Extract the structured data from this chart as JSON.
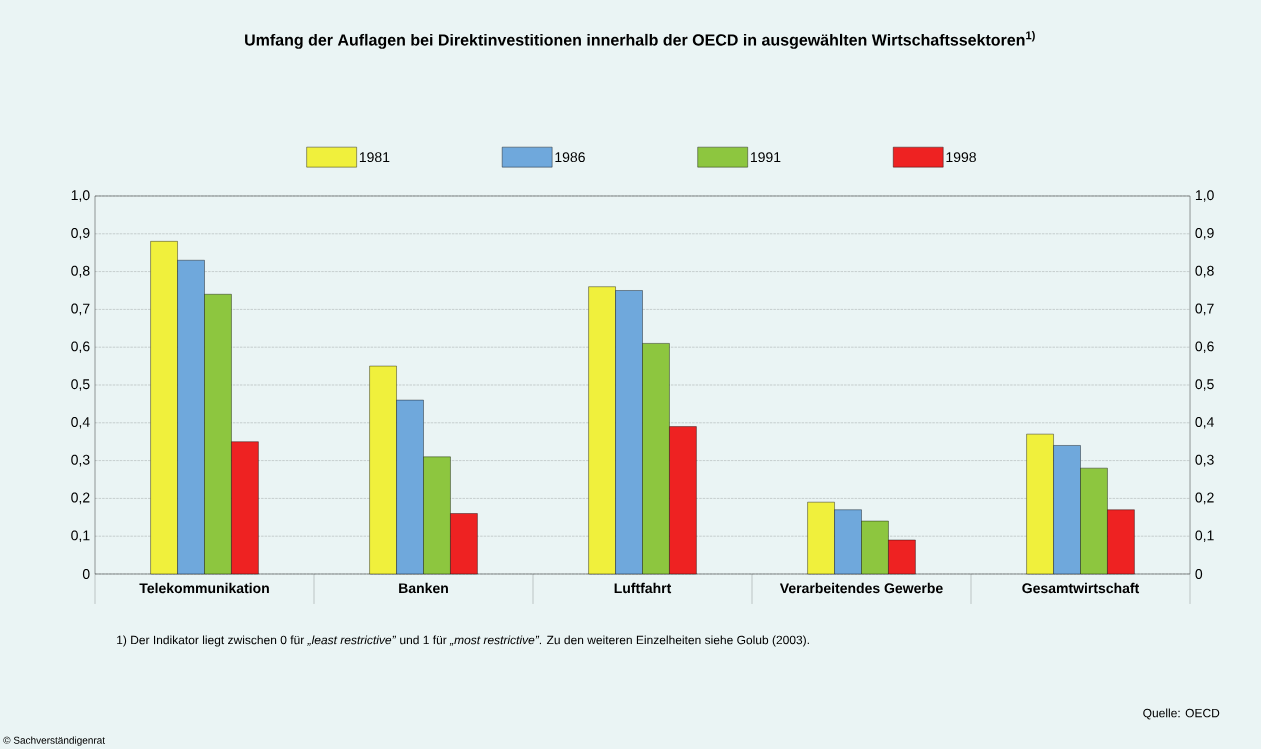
{
  "chart_data": {
    "type": "bar",
    "title": "Umfang der Auflagen bei Direktinvestitionen innerhalb der OECD in ausgewählten Wirtschaftssektoren$^{1)}$",
    "categories": [
      "Telekommunikation",
      "Banken",
      "Luftfahrt",
      "Verarbeitendes Gewerbe",
      "Gesamtwirtschaft"
    ],
    "series": [
      {
        "name": "1981",
        "color": "#f0f03c",
        "values": [
          0.88,
          0.55,
          0.76,
          0.19,
          0.37
        ]
      },
      {
        "name": "1986",
        "color": "#6fa8dc",
        "values": [
          0.83,
          0.46,
          0.75,
          0.17,
          0.34
        ]
      },
      {
        "name": "1991",
        "color": "#8dc63f",
        "values": [
          0.74,
          0.31,
          0.61,
          0.14,
          0.28
        ]
      },
      {
        "name": "1998",
        "color": "#ee2222",
        "values": [
          0.35,
          0.16,
          0.39,
          0.09,
          0.17
        ]
      }
    ],
    "ylim": [
      0,
      1
    ],
    "yticks": [
      {
        "value": 0,
        "label": "0"
      },
      {
        "value": 0.1,
        "label": "0,1"
      },
      {
        "value": 0.2,
        "label": "0,2"
      },
      {
        "value": 0.3,
        "label": "0,3"
      },
      {
        "value": 0.4,
        "label": "0,4"
      },
      {
        "value": 0.5,
        "label": "0,5"
      },
      {
        "value": 0.6,
        "label": "0,6"
      },
      {
        "value": 0.7,
        "label": "0,7"
      },
      {
        "value": 0.8,
        "label": "0,8"
      },
      {
        "value": 0.9,
        "label": "0,9"
      },
      {
        "value": 1,
        "label": "1,0"
      }
    ],
    "y2lim": [
      0,
      1
    ],
    "y2ticks": [
      {
        "value": 0,
        "label": "0"
      },
      {
        "value": 0.1,
        "label": "0,1"
      },
      {
        "value": 0.2,
        "label": "0,2"
      },
      {
        "value": 0.3,
        "label": "0,3"
      },
      {
        "value": 0.4,
        "label": "0,4"
      },
      {
        "value": 0.5,
        "label": "0,5"
      },
      {
        "value": 0.6,
        "label": "0,6"
      },
      {
        "value": 0.7,
        "label": "0,7"
      },
      {
        "value": 0.8,
        "label": "0,8"
      },
      {
        "value": 0.9,
        "label": "0,9"
      },
      {
        "value": 1,
        "label": "1,0"
      }
    ],
    "grid": "y",
    "legend": "top",
    "annotations": [
      "1) Der Indikator liegt zwischen 0 für *„least restrictive”* und 1 für *„most restrictive”*. Zu den weiteren Einzelheiten siehe Golub (2003).",
      "Quelle: OECD",
      "© Sachverständigenrat"
    ]
  }
}
